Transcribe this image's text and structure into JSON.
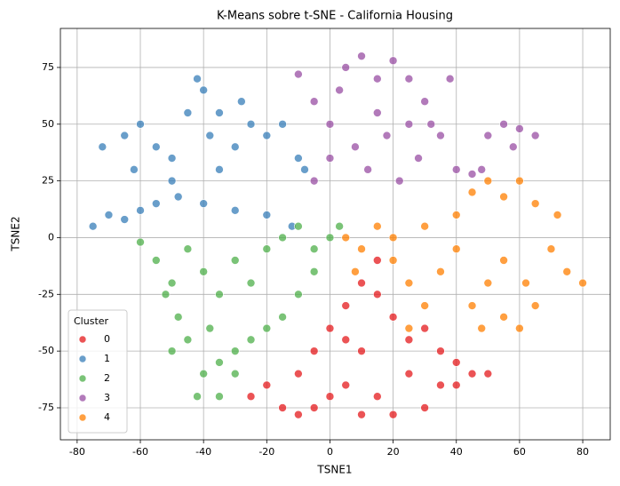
{
  "chart_data": {
    "type": "scatter",
    "title": "K-Means sobre t-SNE - California Housing",
    "x_label": "TSNE1",
    "y_label": "TSNE2",
    "xlim": [
      -85.3,
      88.7
    ],
    "ylim": [
      -89.1,
      92.2
    ],
    "xticks": [
      -80,
      -60,
      -40,
      -20,
      0,
      20,
      40,
      60,
      80
    ],
    "yticks": [
      -75,
      -50,
      -25,
      0,
      25,
      50,
      75
    ],
    "grid": true,
    "legend_title": "Cluster",
    "legend_location": "lower left",
    "series": [
      {
        "name": "0",
        "color": "#e41a1c",
        "x": [
          -25,
          -20,
          -15,
          -10,
          -5,
          0,
          5,
          10,
          15,
          20,
          25,
          30,
          35,
          40,
          45,
          50,
          40,
          30,
          20,
          15,
          10,
          5,
          0,
          -5,
          -10,
          10,
          15,
          25,
          5,
          35
        ],
        "values": [
          -70,
          -65,
          -75,
          -60,
          -50,
          -40,
          -30,
          -20,
          -25,
          -35,
          -45,
          -40,
          -50,
          -55,
          -60,
          -60,
          -65,
          -75,
          -78,
          -70,
          -78,
          -65,
          -70,
          -75,
          -78,
          -50,
          -10,
          -60,
          -45,
          -65
        ]
      },
      {
        "name": "1",
        "color": "#377eb8",
        "x": [
          -75,
          -70,
          -65,
          -60,
          -55,
          -48,
          -40,
          -30,
          -20,
          -12,
          -72,
          -65,
          -60,
          -55,
          -50,
          -45,
          -40,
          -38,
          -35,
          -30,
          -25,
          -20,
          -15,
          -10,
          -8,
          -50,
          -35,
          -62,
          -42,
          -28
        ],
        "values": [
          5,
          10,
          8,
          12,
          15,
          18,
          15,
          12,
          10,
          5,
          40,
          45,
          50,
          40,
          35,
          55,
          65,
          45,
          55,
          40,
          50,
          45,
          50,
          35,
          30,
          25,
          30,
          30,
          70,
          60
        ]
      },
      {
        "name": "2",
        "color": "#4daf4a",
        "x": [
          -60,
          -55,
          -50,
          -45,
          -40,
          -35,
          -30,
          -25,
          -20,
          -15,
          -10,
          -5,
          0,
          -5,
          -10,
          -15,
          -20,
          -25,
          -30,
          -35,
          -40,
          -45,
          -50,
          -48,
          -42,
          -35,
          -30,
          3,
          -38,
          -52
        ],
        "values": [
          -2,
          -10,
          -20,
          -5,
          -15,
          -25,
          -10,
          -20,
          -5,
          0,
          5,
          -5,
          0,
          -15,
          -25,
          -35,
          -40,
          -45,
          -50,
          -55,
          -60,
          -45,
          -50,
          -35,
          -70,
          -70,
          -60,
          5,
          -40,
          -25
        ]
      },
      {
        "name": "3",
        "color": "#984ea3",
        "x": [
          -10,
          -5,
          0,
          5,
          10,
          15,
          20,
          25,
          30,
          8,
          12,
          18,
          22,
          28,
          35,
          40,
          45,
          50,
          55,
          60,
          65,
          0,
          -5,
          32,
          38,
          48,
          3,
          15,
          25,
          58
        ],
        "values": [
          72,
          60,
          50,
          75,
          80,
          70,
          78,
          70,
          60,
          40,
          30,
          45,
          25,
          35,
          45,
          30,
          28,
          45,
          50,
          48,
          45,
          35,
          25,
          50,
          70,
          30,
          65,
          55,
          50,
          40
        ]
      },
      {
        "name": "4",
        "color": "#ff7f00",
        "x": [
          5,
          10,
          15,
          20,
          25,
          30,
          35,
          40,
          45,
          50,
          55,
          60,
          65,
          70,
          75,
          80,
          55,
          50,
          45,
          55,
          60,
          65,
          40,
          30,
          20,
          8,
          72,
          62,
          48,
          25
        ],
        "values": [
          0,
          -5,
          5,
          -10,
          -20,
          -30,
          -15,
          10,
          20,
          25,
          18,
          25,
          15,
          -5,
          -15,
          -20,
          -10,
          -20,
          -30,
          -35,
          -40,
          -30,
          -5,
          5,
          0,
          -15,
          10,
          -20,
          -40,
          -40
        ]
      }
    ]
  }
}
